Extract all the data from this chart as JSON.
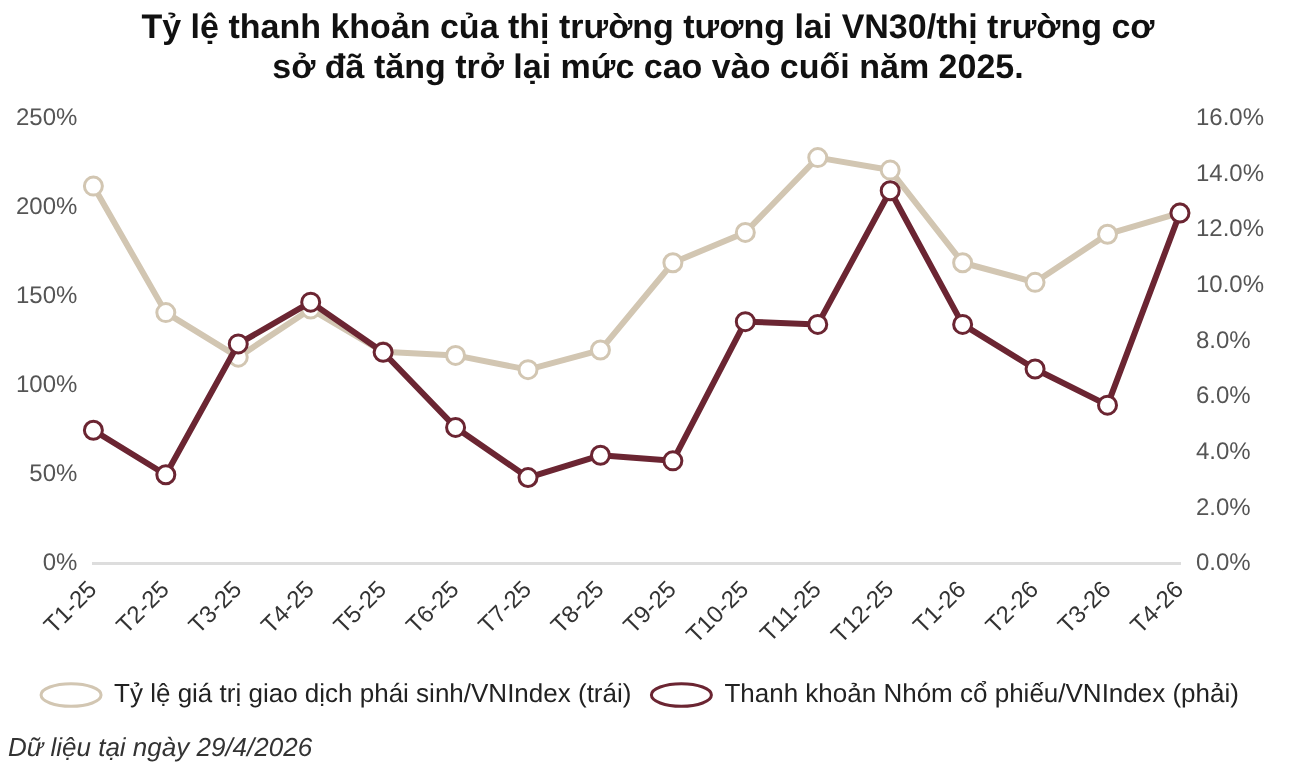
{
  "chart_data": {
    "type": "line",
    "title": "Tỷ lệ thanh khoản của thị trường tương lai VN30/thị trường cơ sở đã tăng trở lại mức cao vào cuối năm 2025.",
    "categories": [
      "T1-25",
      "T2-25",
      "T3-25",
      "T4-25",
      "T5-25",
      "T6-25",
      "T7-25",
      "T8-25",
      "T9-25",
      "T10-25",
      "T11-25",
      "T12-25",
      "T1-26",
      "T2-26",
      "T3-26",
      "T4-26"
    ],
    "series": [
      {
        "name": "Tỷ lệ giá trị giao dịch phái sinh/VNIndex (trái)",
        "color": "#d2c6b2",
        "values": [
          212,
          141,
          116,
          143,
          119,
          117,
          109,
          120,
          169,
          186,
          228,
          221,
          169,
          158,
          185,
          197
        ]
      },
      {
        "name": "Thanh khoản Nhóm cổ phiếu/VNIndex (phải)",
        "color": "#6b2532",
        "axis": "y2",
        "values": [
          4.8,
          3.2,
          7.9,
          9.4,
          7.6,
          4.9,
          3.1,
          3.9,
          3.7,
          8.7,
          8.6,
          13.4,
          8.6,
          7.0,
          5.7,
          12.6
        ]
      }
    ],
    "ylim": [
      0,
      250
    ],
    "yticks": [
      {
        "value": 0,
        "label": "0%"
      },
      {
        "value": 50,
        "label": "50%"
      },
      {
        "value": 100,
        "label": "100%"
      },
      {
        "value": 150,
        "label": "150%"
      },
      {
        "value": 200,
        "label": "200%"
      },
      {
        "value": 250,
        "label": "250%"
      }
    ],
    "y2lim": [
      0,
      16
    ],
    "y2ticks": [
      {
        "value": 0,
        "label": "0.0%"
      },
      {
        "value": 2,
        "label": "2.0%"
      },
      {
        "value": 4,
        "label": "4.0%"
      },
      {
        "value": 6,
        "label": "6.0%"
      },
      {
        "value": 8,
        "label": "8.0%"
      },
      {
        "value": 10,
        "label": "10.0%"
      },
      {
        "value": 12,
        "label": "12.0%"
      },
      {
        "value": 14,
        "label": "14.0%"
      },
      {
        "value": 16,
        "label": "16.0%"
      }
    ],
    "grid": false,
    "legend": "bottom",
    "marker": "circle",
    "line_style": "solid",
    "annotations": [
      "Dữ liệu tại ngày 29/4/2026"
    ]
  }
}
